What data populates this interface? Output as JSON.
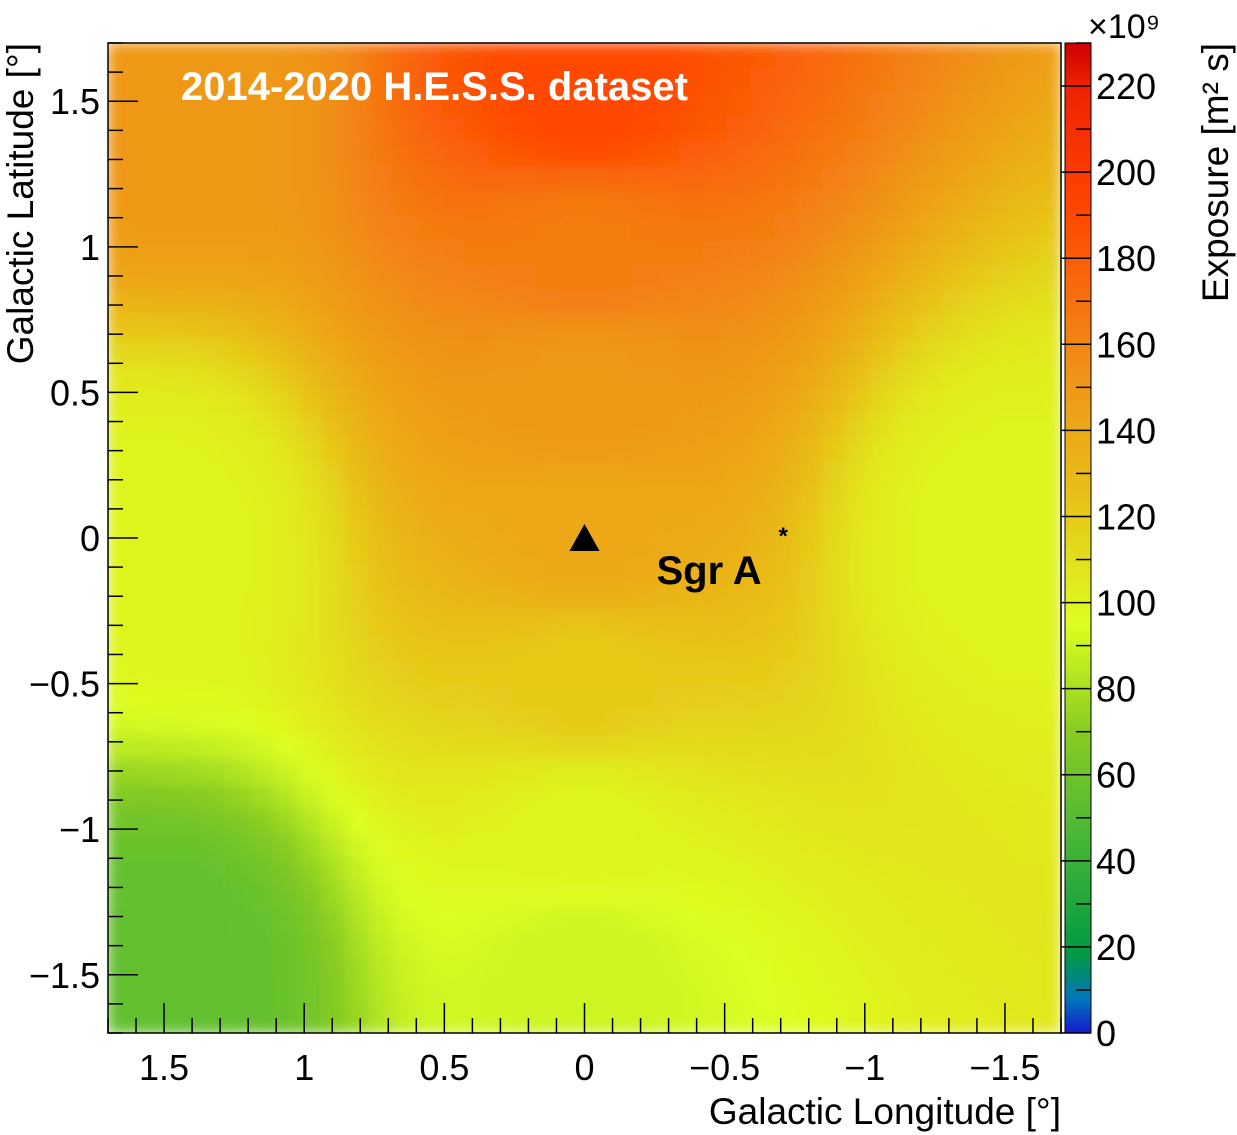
{
  "chart_data": {
    "type": "heatmap",
    "title": "2014-2020 H.E.S.S. dataset",
    "xlabel": "Galactic Longitude [°]",
    "ylabel": "Galactic Latitude [°]",
    "zlabel": "Exposure [m² s]",
    "z_multiplier": "×10⁹",
    "xlim": [
      1.7,
      -1.7
    ],
    "ylim": [
      -1.7,
      1.7
    ],
    "zlim": [
      0,
      230
    ],
    "x_ticks": [
      {
        "value": 1.5,
        "label": "1.5"
      },
      {
        "value": 1,
        "label": "1"
      },
      {
        "value": 0.5,
        "label": "0.5"
      },
      {
        "value": 0,
        "label": "0"
      },
      {
        "value": -0.5,
        "label": "−0.5"
      },
      {
        "value": -1,
        "label": "−1"
      },
      {
        "value": -1.5,
        "label": "−1.5"
      }
    ],
    "y_ticks": [
      {
        "value": 1.5,
        "label": "1.5"
      },
      {
        "value": 1,
        "label": "1"
      },
      {
        "value": 0.5,
        "label": "0.5"
      },
      {
        "value": 0,
        "label": "0"
      },
      {
        "value": -0.5,
        "label": "−0.5"
      },
      {
        "value": -1,
        "label": "−1"
      },
      {
        "value": -1.5,
        "label": "−1.5"
      }
    ],
    "z_ticks": [
      {
        "value": 0,
        "label": "0"
      },
      {
        "value": 20,
        "label": "20"
      },
      {
        "value": 40,
        "label": "40"
      },
      {
        "value": 60,
        "label": "60"
      },
      {
        "value": 80,
        "label": "80"
      },
      {
        "value": 100,
        "label": "100"
      },
      {
        "value": 120,
        "label": "120"
      },
      {
        "value": 140,
        "label": "140"
      },
      {
        "value": 160,
        "label": "160"
      },
      {
        "value": 180,
        "label": "180"
      },
      {
        "value": 200,
        "label": "200"
      },
      {
        "value": 220,
        "label": "220"
      }
    ],
    "exposure_samples": [
      {
        "l": 0,
        "b": 1.5,
        "z": 190
      },
      {
        "l": 0,
        "b": 1.0,
        "z": 165
      },
      {
        "l": 0,
        "b": 0.5,
        "z": 150
      },
      {
        "l": 0,
        "b": 0.0,
        "z": 140
      },
      {
        "l": 0,
        "b": -0.5,
        "z": 120
      },
      {
        "l": 0,
        "b": -1.0,
        "z": 100
      },
      {
        "l": 0,
        "b": -1.5,
        "z": 90
      },
      {
        "l": 1.5,
        "b": 0.0,
        "z": 100
      },
      {
        "l": -1.5,
        "b": 0.0,
        "z": 100
      },
      {
        "l": 1.5,
        "b": 1.5,
        "z": 150
      },
      {
        "l": 1.5,
        "b": -1.5,
        "z": 55
      }
    ],
    "colorbar": [
      {
        "z": 0,
        "color": "#1818cc"
      },
      {
        "z": 8,
        "color": "#0077bb"
      },
      {
        "z": 18,
        "color": "#009944"
      },
      {
        "z": 50,
        "color": "#55bb33"
      },
      {
        "z": 70,
        "color": "#88cc22"
      },
      {
        "z": 95,
        "color": "#ddff20"
      },
      {
        "z": 125,
        "color": "#e8c018"
      },
      {
        "z": 155,
        "color": "#f09018"
      },
      {
        "z": 190,
        "color": "#ff4800"
      },
      {
        "z": 220,
        "color": "#ee2200"
      },
      {
        "z": 230,
        "color": "#cc0000"
      }
    ],
    "markers": [
      {
        "label": "Sgr A",
        "superscript": "*",
        "l": 0,
        "b": 0,
        "symbol": "triangle",
        "color": "#000000"
      }
    ]
  }
}
